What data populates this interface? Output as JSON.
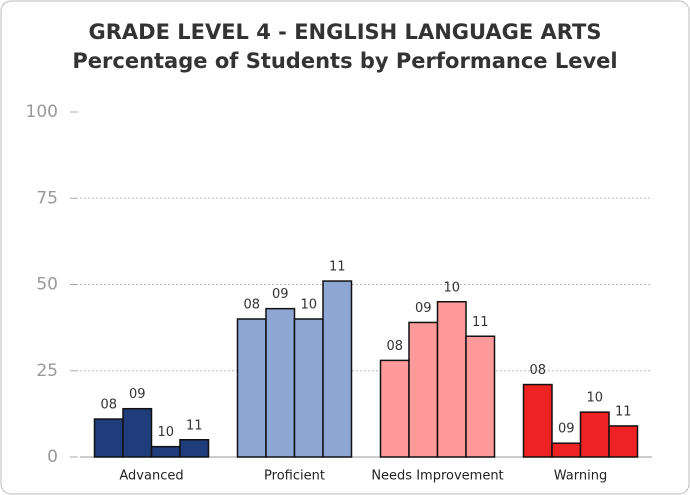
{
  "chart_data": {
    "type": "bar",
    "title": "GRADE LEVEL 4 - ENGLISH LANGUAGE ARTS",
    "subtitle": "Percentage of Students by Performance Level",
    "categories": [
      "Advanced",
      "Proficient",
      "Needs Improvement",
      "Warning"
    ],
    "category_colors": [
      "#1f3d7a",
      "#8ea6d4",
      "#ff9a9a",
      "#ee2222"
    ],
    "series": [
      {
        "name": "08",
        "values": [
          11,
          40,
          28,
          21
        ]
      },
      {
        "name": "09",
        "values": [
          14,
          43,
          39,
          4
        ]
      },
      {
        "name": "10",
        "values": [
          3,
          40,
          45,
          13
        ]
      },
      {
        "name": "11",
        "values": [
          5,
          51,
          35,
          9
        ]
      }
    ],
    "ylim": [
      0,
      100
    ],
    "yticks": [
      0,
      25,
      50,
      75,
      100
    ],
    "grid": true
  }
}
